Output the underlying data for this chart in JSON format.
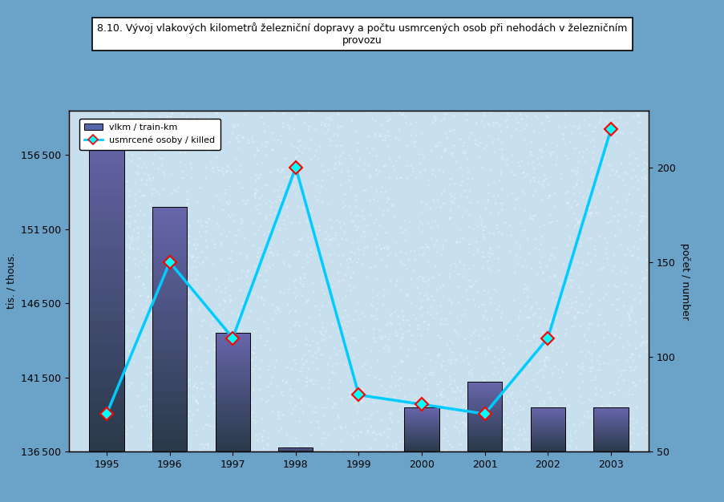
{
  "title_line1": "8.10. Vývoj vlakových kilometrů železniční dopravy a počtu usmrcených osob při nehodách v železničním",
  "title_line2": "provozu",
  "years": [
    1995,
    1996,
    1997,
    1998,
    1999,
    2000,
    2001,
    2002,
    2003
  ],
  "train_km": [
    158600,
    153000,
    144500,
    136800,
    136500,
    139500,
    141200,
    139500,
    139500
  ],
  "killed": [
    70,
    150,
    110,
    200,
    80,
    75,
    70,
    110,
    220
  ],
  "ylabel_left": "tis. / thous.",
  "ylabel_right": "počet / number",
  "ylim_left": [
    136500,
    159500
  ],
  "ylim_right": [
    50,
    230
  ],
  "yticks_left": [
    136500,
    141500,
    146500,
    151500,
    156500
  ],
  "yticks_right": [
    50,
    100,
    150,
    200
  ],
  "legend_bar": "vlkm / train-km",
  "legend_line": "usmrcené osoby / killed",
  "bg_outer": "#6BA3C8",
  "bg_inner": "#C8E0EE",
  "line_color": "#00CCFF",
  "marker_color": "#00FFFF",
  "marker_edge": "#FF0000"
}
